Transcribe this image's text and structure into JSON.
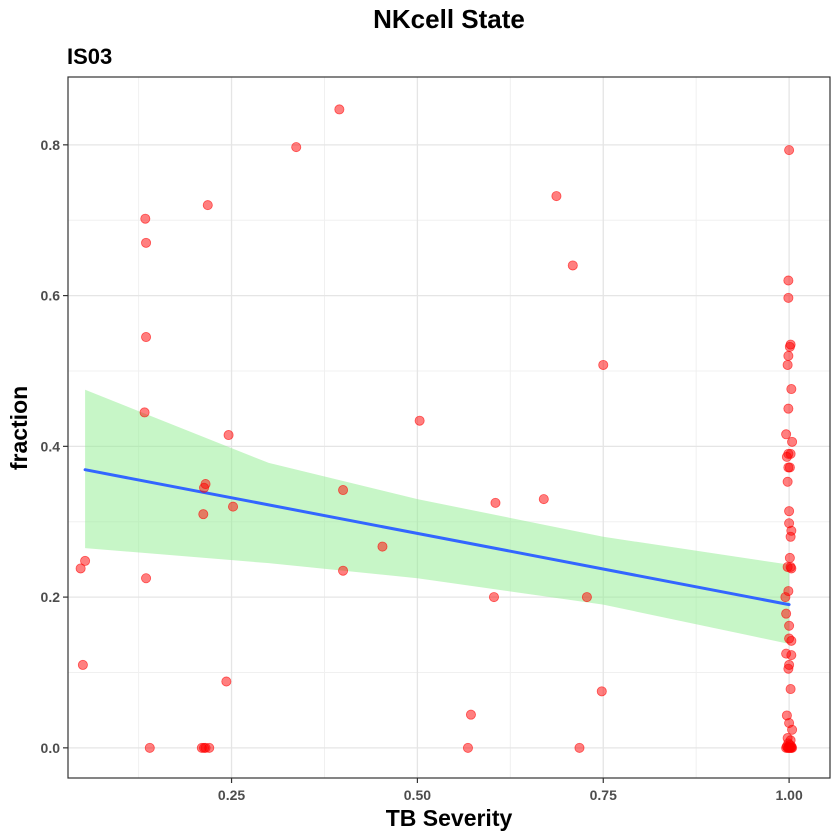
{
  "chart_data": {
    "type": "scatter",
    "title": "NKcell State",
    "subtitle": "IS03",
    "xlabel": "TB Severity",
    "ylabel": "fraction",
    "xlim": [
      0.03,
      1.055
    ],
    "ylim": [
      -0.04,
      0.89
    ],
    "x_ticks": [
      0.25,
      0.5,
      0.75,
      1.0
    ],
    "x_tick_labels": [
      "0.25",
      "0.50",
      "0.75",
      "1.00"
    ],
    "x_minor": [
      0.125,
      0.375,
      0.625,
      0.875
    ],
    "y_ticks": [
      0.0,
      0.2,
      0.4,
      0.6,
      0.8
    ],
    "y_tick_labels": [
      "0.0",
      "0.2",
      "0.4",
      "0.6",
      "0.8"
    ],
    "y_minor": [
      0.1,
      0.3,
      0.5,
      0.7
    ],
    "grid": true,
    "point_color": "#ff0000",
    "point_opacity": 0.5,
    "line_color": "#3366ff",
    "band_color": "#90ee90",
    "band_opacity": 0.5,
    "points": [
      [
        0.047,
        0.238
      ],
      [
        0.05,
        0.11
      ],
      [
        0.053,
        0.248
      ],
      [
        0.134,
        0.702
      ],
      [
        0.135,
        0.67
      ],
      [
        0.135,
        0.545
      ],
      [
        0.133,
        0.445
      ],
      [
        0.135,
        0.225
      ],
      [
        0.14,
        0.0
      ],
      [
        0.21,
        0.0
      ],
      [
        0.213,
        0.0
      ],
      [
        0.215,
        0.0
      ],
      [
        0.22,
        0.0
      ],
      [
        0.212,
        0.31
      ],
      [
        0.213,
        0.345
      ],
      [
        0.215,
        0.35
      ],
      [
        0.218,
        0.72
      ],
      [
        0.243,
        0.088
      ],
      [
        0.246,
        0.415
      ],
      [
        0.252,
        0.32
      ],
      [
        0.337,
        0.797
      ],
      [
        0.395,
        0.847
      ],
      [
        0.4,
        0.342
      ],
      [
        0.4,
        0.235
      ],
      [
        0.453,
        0.267
      ],
      [
        0.503,
        0.434
      ],
      [
        0.568,
        0.0
      ],
      [
        0.572,
        0.044
      ],
      [
        0.603,
        0.2
      ],
      [
        0.605,
        0.325
      ],
      [
        0.67,
        0.33
      ],
      [
        0.687,
        0.732
      ],
      [
        0.709,
        0.64
      ],
      [
        0.718,
        0.0
      ],
      [
        0.728,
        0.2
      ],
      [
        0.748,
        0.075
      ],
      [
        0.75,
        0.508
      ],
      [
        1.0,
        0.793
      ],
      [
        0.999,
        0.62
      ],
      [
        0.999,
        0.597
      ],
      [
        1.002,
        0.535
      ],
      [
        1.001,
        0.532
      ],
      [
        0.999,
        0.52
      ],
      [
        0.998,
        0.508
      ],
      [
        1.003,
        0.476
      ],
      [
        0.999,
        0.45
      ],
      [
        0.996,
        0.416
      ],
      [
        1.004,
        0.406
      ],
      [
        0.999,
        0.39
      ],
      [
        1.002,
        0.39
      ],
      [
        0.997,
        0.386
      ],
      [
        0.999,
        0.372
      ],
      [
        1.001,
        0.372
      ],
      [
        0.998,
        0.353
      ],
      [
        1.0,
        0.314
      ],
      [
        1.0,
        0.298
      ],
      [
        1.003,
        0.288
      ],
      [
        1.002,
        0.28
      ],
      [
        1.001,
        0.252
      ],
      [
        0.998,
        0.24
      ],
      [
        1.002,
        0.24
      ],
      [
        1.003,
        0.238
      ],
      [
        0.999,
        0.208
      ],
      [
        0.995,
        0.2
      ],
      [
        0.996,
        0.178
      ],
      [
        1.0,
        0.162
      ],
      [
        1.0,
        0.145
      ],
      [
        1.003,
        0.142
      ],
      [
        0.996,
        0.125
      ],
      [
        1.003,
        0.123
      ],
      [
        1.0,
        0.11
      ],
      [
        0.999,
        0.105
      ],
      [
        1.002,
        0.078
      ],
      [
        0.997,
        0.043
      ],
      [
        1.0,
        0.033
      ],
      [
        1.004,
        0.024
      ],
      [
        0.998,
        0.013
      ],
      [
        1.002,
        0.01
      ],
      [
        0.999,
        0.006
      ],
      [
        1.001,
        0.004
      ],
      [
        0.997,
        0.002
      ],
      [
        1.003,
        0.002
      ],
      [
        0.996,
        0.0
      ],
      [
        0.998,
        0.0
      ],
      [
        1.0,
        0.0
      ],
      [
        1.002,
        0.0
      ],
      [
        1.004,
        0.0
      ],
      [
        0.999,
        0.0
      ],
      [
        1.001,
        0.0
      ],
      [
        1.003,
        0.0
      ]
    ],
    "fit_line": [
      [
        0.053,
        0.369
      ],
      [
        1.0,
        0.19
      ]
    ],
    "confidence_band": {
      "x": [
        0.053,
        0.3,
        0.5,
        0.75,
        1.0
      ],
      "upper": [
        0.475,
        0.378,
        0.33,
        0.28,
        0.243
      ],
      "lower": [
        0.265,
        0.245,
        0.225,
        0.19,
        0.138
      ]
    }
  }
}
